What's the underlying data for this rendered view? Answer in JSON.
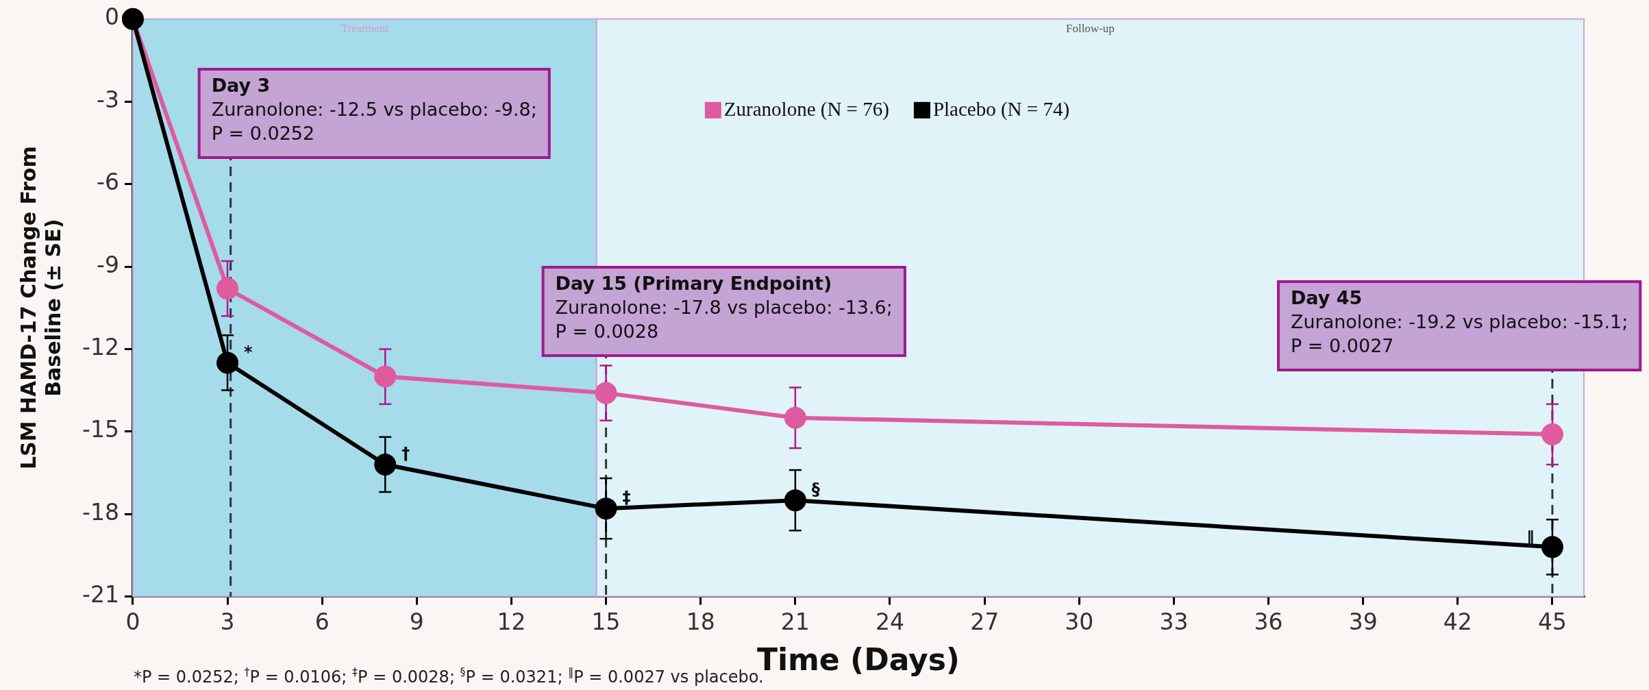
{
  "chart_data": {
    "type": "line",
    "xlabel": "Time (Days)",
    "ylabel": "LSM HAMD-17 Change From Baseline (± SE)",
    "xlim": [
      0,
      46
    ],
    "xticks": [
      0,
      3,
      6,
      9,
      12,
      15,
      18,
      21,
      24,
      27,
      30,
      33,
      36,
      39,
      42,
      45
    ],
    "ylim": [
      -21,
      0
    ],
    "yticks": [
      -21,
      -18,
      -15,
      -12,
      -9,
      -6,
      -3,
      0
    ],
    "grid": false,
    "legend": "top",
    "marker": "circle",
    "line_style": "solid",
    "series": [
      {
        "name": "Zuranolone (N = 76)",
        "color": "#de5b9f",
        "x": [
          0,
          3,
          8,
          15,
          21,
          45
        ],
        "values": [
          0,
          -9.8,
          -13.0,
          -13.6,
          -14.5,
          -15.1
        ],
        "errors": [
          null,
          1.0,
          1.0,
          1.0,
          1.1,
          1.1
        ]
      },
      {
        "name": "Placebo (N = 74)",
        "color": "#000000",
        "x": [
          0,
          3,
          8,
          15,
          21,
          45
        ],
        "values": [
          0,
          -12.5,
          -16.2,
          -17.8,
          -17.5,
          -19.2
        ],
        "errors": [
          null,
          1.0,
          1.0,
          1.1,
          1.1,
          1.0
        ]
      }
    ],
    "bands": [
      {
        "axis": "x",
        "from": 0,
        "to": 14.7,
        "label": "Treatment",
        "color": "#a6dbea"
      },
      {
        "axis": "x",
        "from": 14.7,
        "to": 46,
        "label": "Follow-up",
        "color": "#e0f3f8"
      }
    ],
    "ref_lines": [
      {
        "axis": "x",
        "value": 3.1,
        "line_style": "dashed",
        "color": "#333333"
      },
      {
        "axis": "x",
        "value": 15,
        "line_style": "dashed",
        "color": "#333333"
      },
      {
        "axis": "x",
        "value": 45,
        "line_style": "dashed",
        "color": "#333333"
      }
    ],
    "annotations": [
      {
        "text": "Day 3\nZuranolone: -12.5 vs placebo: -9.8;\nP = 0.0252",
        "x": 3.1
      },
      {
        "text": "Day 15 (Primary Endpoint)\nZuranolone: -17.8 vs placebo: -13.6;\nP = 0.0028",
        "x": 15
      },
      {
        "text": "Day 45\nZuranolone: -19.2 vs placebo: -15.1;\nP = 0.0027",
        "x": 45
      },
      {
        "text": "*",
        "x": 3,
        "y": -12.5
      },
      {
        "text": "†",
        "x": 8,
        "y": -16.2
      },
      {
        "text": "‡",
        "x": 15,
        "y": -17.8
      },
      {
        "text": "§",
        "x": 21,
        "y": -17.5
      },
      {
        "text": "‖",
        "x": 45,
        "y": -19.2
      },
      "*P = 0.0252; $^{†}$P = 0.0106; $^{‡}$P = 0.0028; $^{§}$P = 0.0321; $^{‖}$P = 0.0027 vs placebo."
    ]
  }
}
